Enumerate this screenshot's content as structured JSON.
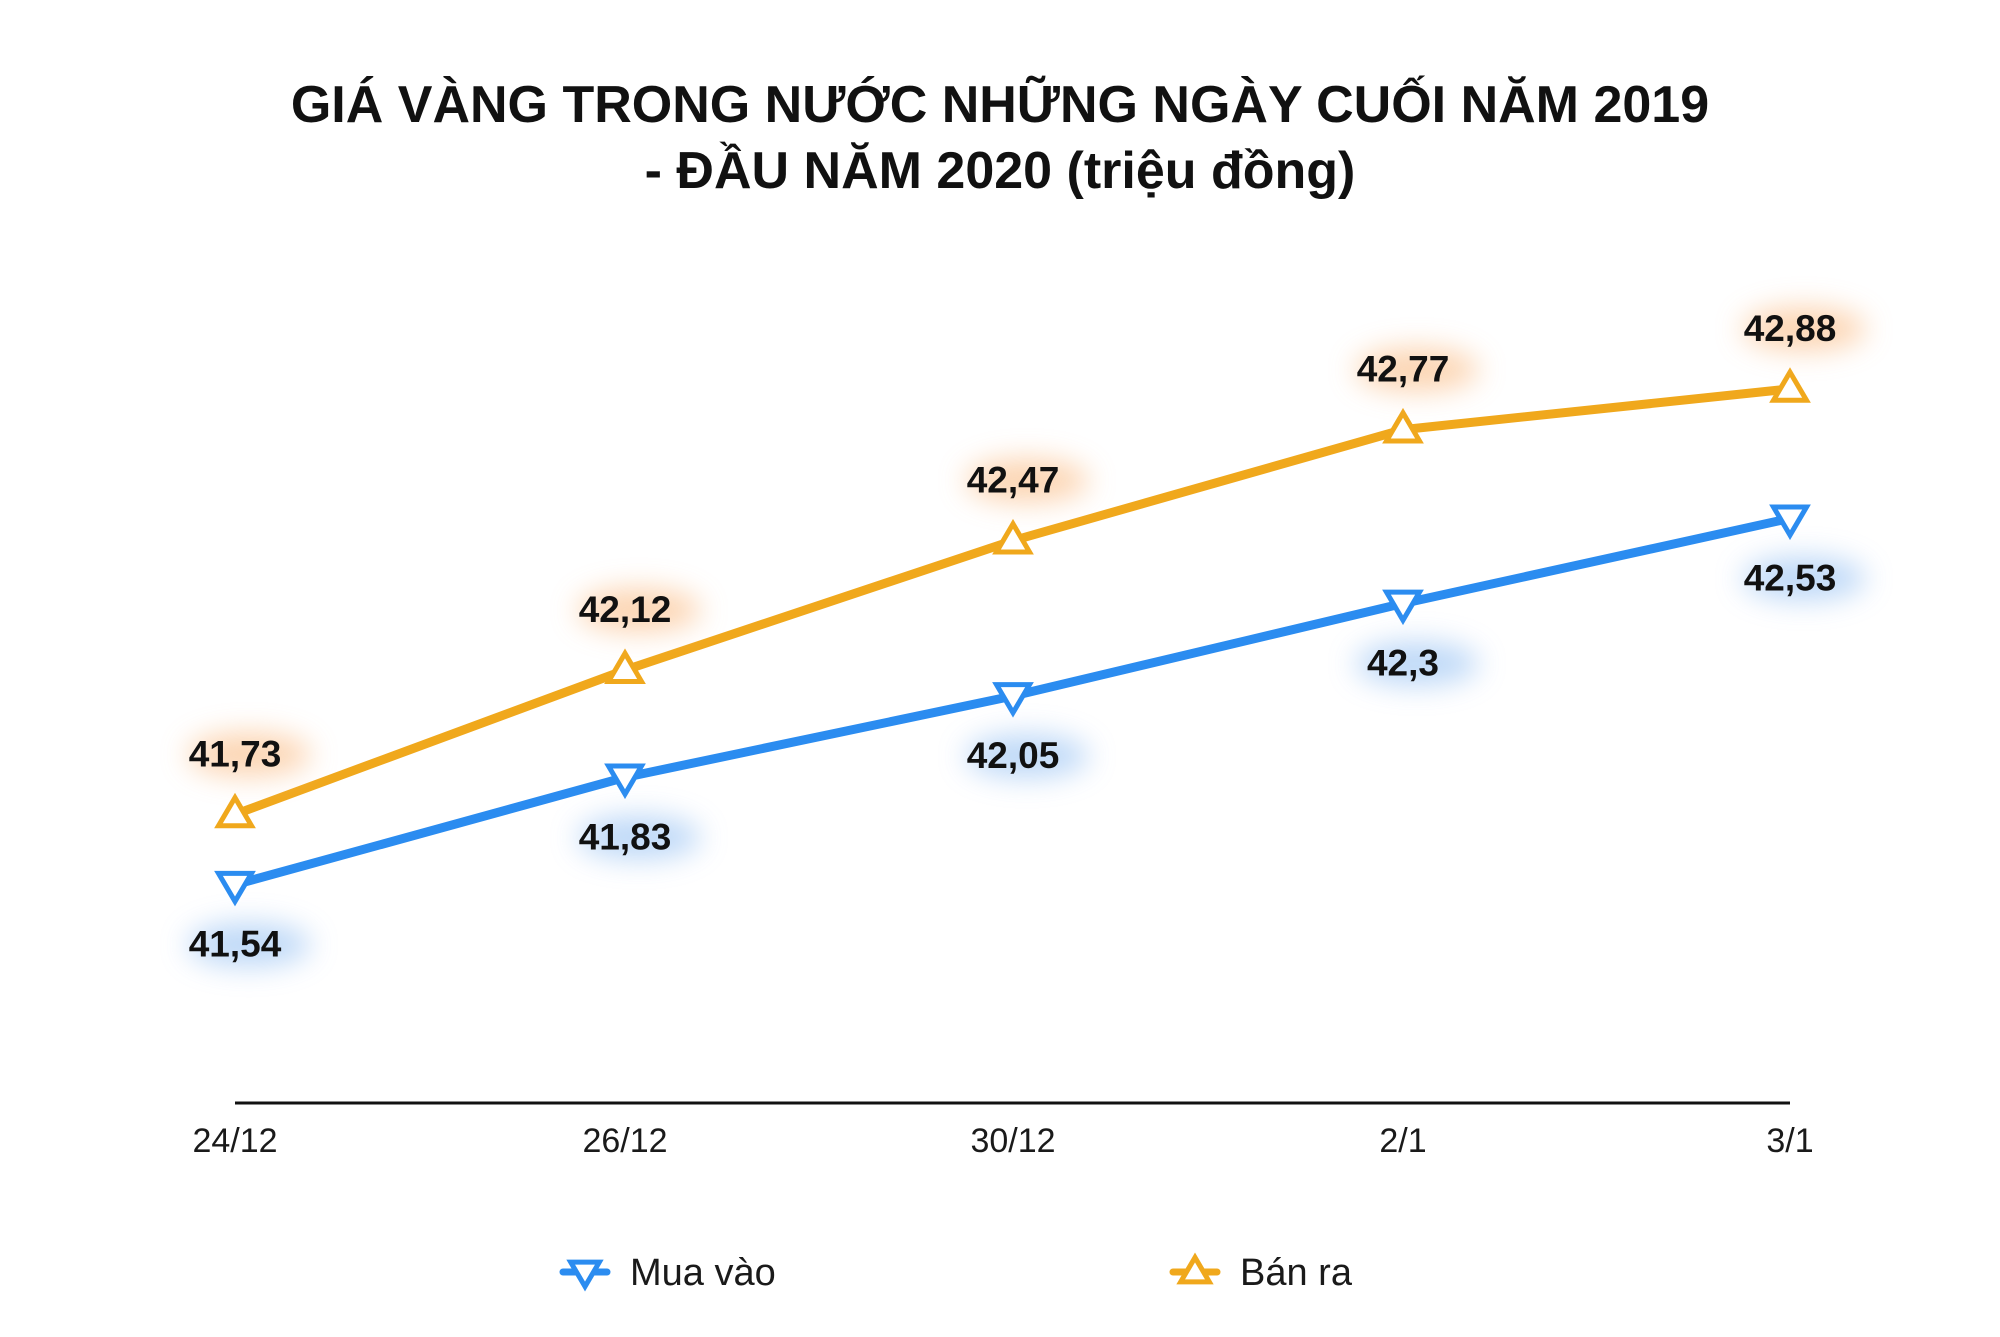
{
  "chart_data": {
    "type": "line",
    "title_lines": [
      "GIÁ VÀNG TRONG NƯỚC NHỮNG NGÀY CUỐI NĂM 2019",
      "- ĐẦU NĂM 2020 (triệu đồng)"
    ],
    "categories": [
      "24/12",
      "26/12",
      "30/12",
      "2/1",
      "3/1"
    ],
    "series": [
      {
        "name": "Mua vào",
        "marker": "triangle-down",
        "label_position": "below",
        "color": "#2b8cf0",
        "values": [
          41.54,
          41.83,
          42.05,
          42.3,
          42.53
        ],
        "labels": [
          "41,54",
          "41,83",
          "42,05",
          "42,3",
          "42,53"
        ]
      },
      {
        "name": "Bán ra",
        "marker": "triangle-up",
        "label_position": "above",
        "color": "#f0a81c",
        "values": [
          41.73,
          42.12,
          42.47,
          42.77,
          42.88
        ],
        "labels": [
          "41,73",
          "42,12",
          "42,47",
          "42,77",
          "42,88"
        ]
      }
    ],
    "ylim": [
      40.95,
      43.35
    ],
    "grid": false,
    "legend_position": "bottom"
  }
}
